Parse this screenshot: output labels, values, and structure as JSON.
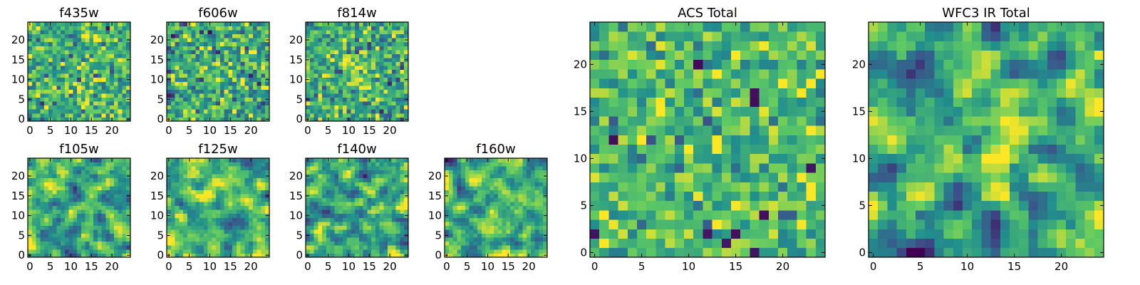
{
  "figure": {
    "background": "#ffffff"
  },
  "colormap": {
    "name": "viridis",
    "stops": [
      "#440154",
      "#3b528b",
      "#21908d",
      "#5dc963",
      "#fde725"
    ]
  },
  "chart_data": [
    {
      "type": "heatmap",
      "title": "f435w",
      "grid_size": 25,
      "xlim": [
        0,
        24
      ],
      "ylim": [
        0,
        24
      ],
      "xticks": [
        "0",
        "5",
        "10",
        "15",
        "20"
      ],
      "yticks": [
        "0",
        "5",
        "10",
        "15",
        "20"
      ],
      "pixel_values": "random noise, mean 0.65, sd 0.18",
      "seed": 11
    },
    {
      "type": "heatmap",
      "title": "f606w",
      "grid_size": 25,
      "xlim": [
        0,
        24
      ],
      "ylim": [
        0,
        24
      ],
      "xticks": [
        "0",
        "5",
        "10",
        "15",
        "20"
      ],
      "yticks": [
        "0",
        "5",
        "10",
        "15",
        "20"
      ],
      "pixel_values": "random noise, mean 0.62, sd 0.2",
      "seed": 23
    },
    {
      "type": "heatmap",
      "title": "f814w",
      "grid_size": 25,
      "xlim": [
        0,
        24
      ],
      "ylim": [
        0,
        24
      ],
      "xticks": [
        "0",
        "5",
        "10",
        "15",
        "20"
      ],
      "yticks": [
        "0",
        "5",
        "10",
        "15",
        "20"
      ],
      "pixel_values": "random noise with bright centre, mean 0.62",
      "seed": 37
    },
    {
      "type": "heatmap",
      "title": "f105w",
      "grid_size": 25,
      "xlim": [
        0,
        24
      ],
      "ylim": [
        0,
        24
      ],
      "xticks": [
        "0",
        "5",
        "10",
        "15",
        "20"
      ],
      "yticks": [
        "0",
        "5",
        "10",
        "15",
        "20"
      ],
      "pixel_values": "smoothed noise, mean 0.62",
      "seed": 41
    },
    {
      "type": "heatmap",
      "title": "f125w",
      "grid_size": 25,
      "xlim": [
        0,
        24
      ],
      "ylim": [
        0,
        24
      ],
      "xticks": [
        "0",
        "5",
        "10",
        "15",
        "20"
      ],
      "yticks": [
        "0",
        "5",
        "10",
        "15",
        "20"
      ],
      "pixel_values": "smoothed noise, mean 0.66",
      "seed": 53
    },
    {
      "type": "heatmap",
      "title": "f140w",
      "grid_size": 25,
      "xlim": [
        0,
        24
      ],
      "ylim": [
        0,
        24
      ],
      "xticks": [
        "0",
        "5",
        "10",
        "15",
        "20"
      ],
      "yticks": [
        "0",
        "5",
        "10",
        "15",
        "20"
      ],
      "pixel_values": "smoothed noise, mean 0.6",
      "seed": 67
    },
    {
      "type": "heatmap",
      "title": "f160w",
      "grid_size": 25,
      "xlim": [
        0,
        24
      ],
      "ylim": [
        0,
        24
      ],
      "xticks": [
        "0",
        "5",
        "10",
        "15",
        "20"
      ],
      "yticks": [
        "0",
        "5",
        "10",
        "15",
        "20"
      ],
      "pixel_values": "smoothed noise with bright centre, mean 0.62",
      "seed": 79
    },
    {
      "type": "heatmap",
      "title": "ACS Total",
      "grid_size": 25,
      "xlim": [
        0,
        24
      ],
      "ylim": [
        0,
        24
      ],
      "xticks": [
        "0",
        "5",
        "10",
        "15",
        "20"
      ],
      "yticks": [
        "0",
        "5",
        "10",
        "15",
        "20"
      ],
      "pixel_values": "noise, mean 0.68, sd 0.16, a few dark pixels",
      "seed": 97
    },
    {
      "type": "heatmap",
      "title": "WFC3 IR Total",
      "grid_size": 25,
      "xlim": [
        0,
        24
      ],
      "ylim": [
        0,
        24
      ],
      "xticks": [
        "0",
        "5",
        "10",
        "15",
        "20"
      ],
      "yticks": [
        "0",
        "5",
        "10",
        "15",
        "20"
      ],
      "pixel_values": "smoothed noise with bright centre, dark upper-left and lower-middle regions",
      "seed": 113
    }
  ]
}
